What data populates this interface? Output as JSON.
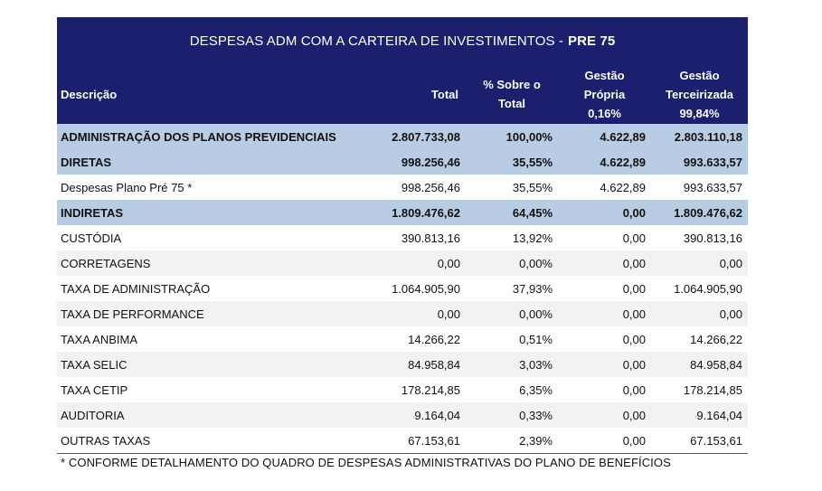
{
  "title": {
    "main": "DESPESAS ADM COM A CARTEIRA DE INVESTIMENTOS -",
    "bold": "PRE 75"
  },
  "headers": {
    "descricao": "Descrição",
    "total": "Total",
    "sobre_line1": "% Sobre o",
    "sobre_line2": "Total",
    "propria_line1": "Gestão",
    "propria_line2": "Própria",
    "propria_pct": "0,16%",
    "terceirizada_line1": "Gestão",
    "terceirizada_line2": "Terceirizada",
    "terceirizada_pct": "99,84%"
  },
  "rows": [
    {
      "desc": "ADMINISTRAÇÃO DOS PLANOS PREVIDENCIAIS",
      "total": "2.807.733,08",
      "pct": "100,00%",
      "propria": "4.622,89",
      "terceirizada": "2.803.110,18"
    },
    {
      "desc": "DIRETAS",
      "total": "998.256,46",
      "pct": "35,55%",
      "propria": "4.622,89",
      "terceirizada": "993.633,57"
    },
    {
      "desc": "Despesas Plano Pré 75 *",
      "total": "998.256,46",
      "pct": "35,55%",
      "propria": "4.622,89",
      "terceirizada": "993.633,57"
    },
    {
      "desc": "INDIRETAS",
      "total": "1.809.476,62",
      "pct": "64,45%",
      "propria": "0,00",
      "terceirizada": "1.809.476,62"
    },
    {
      "desc": "CUSTÓDIA",
      "total": "390.813,16",
      "pct": "13,92%",
      "propria": "0,00",
      "terceirizada": "390.813,16"
    },
    {
      "desc": "CORRETAGENS",
      "total": "0,00",
      "pct": "0,00%",
      "propria": "0,00",
      "terceirizada": "0,00"
    },
    {
      "desc": "TAXA DE ADMINISTRAÇÃO",
      "total": "1.064.905,90",
      "pct": "37,93%",
      "propria": "0,00",
      "terceirizada": "1.064.905,90"
    },
    {
      "desc": "TAXA DE PERFORMANCE",
      "total": "0,00",
      "pct": "0,00%",
      "propria": "0,00",
      "terceirizada": "0,00"
    },
    {
      "desc": "TAXA ANBIMA",
      "total": "14.266,22",
      "pct": "0,51%",
      "propria": "0,00",
      "terceirizada": "14.266,22"
    },
    {
      "desc": "TAXA SELIC",
      "total": "84.958,84",
      "pct": "3,03%",
      "propria": "0,00",
      "terceirizada": "84.958,84"
    },
    {
      "desc": "TAXA CETIP",
      "total": "178.214,85",
      "pct": "6,35%",
      "propria": "0,00",
      "terceirizada": "178.214,85"
    },
    {
      "desc": "AUDITORIA",
      "total": "9.164,04",
      "pct": "0,33%",
      "propria": "0,00",
      "terceirizada": "9.164,04"
    },
    {
      "desc": "OUTRAS TAXAS",
      "total": "67.153,61",
      "pct": "2,39%",
      "propria": "0,00",
      "terceirizada": "67.153,61"
    }
  ],
  "footnote": "* CONFORME DETALHAMENTO DO QUADRO DE DESPESAS ADMINISTRATIVAS DO PLANO DE BENEFÍCIOS"
}
